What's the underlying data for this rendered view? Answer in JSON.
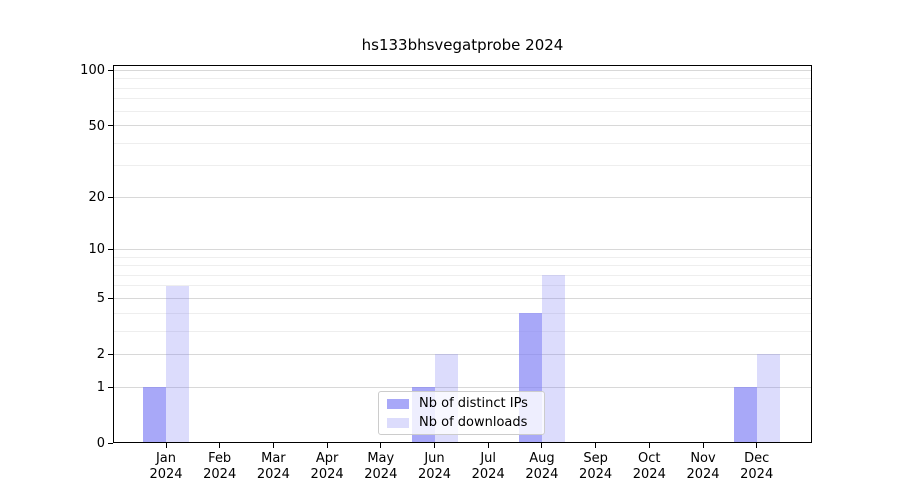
{
  "chart_data": {
    "type": "bar",
    "title": "hs133bhsvegatprobe 2024",
    "categories": [
      "Jan",
      "Feb",
      "Mar",
      "Apr",
      "May",
      "Jun",
      "Jul",
      "Aug",
      "Sep",
      "Oct",
      "Nov",
      "Dec"
    ],
    "year_label": "2024",
    "series": [
      {
        "name": "Nb of distinct IPs",
        "color": "rgba(127,127,245,0.68)",
        "values": [
          1,
          0,
          0,
          0,
          0,
          1,
          0,
          4,
          0,
          0,
          0,
          1
        ]
      },
      {
        "name": "Nb of downloads",
        "color": "rgba(127,127,245,0.27)",
        "values": [
          6,
          0,
          0,
          0,
          0,
          2,
          0,
          7,
          0,
          0,
          0,
          2
        ]
      }
    ],
    "y_scale": "log1p",
    "y_ticks": [
      0,
      1,
      2,
      5,
      10,
      20,
      50,
      100
    ],
    "y_minor_ticks": [
      3,
      4,
      6,
      7,
      8,
      9,
      30,
      40,
      60,
      70,
      80,
      90
    ],
    "ylim": [
      0,
      107
    ],
    "grid": true,
    "legend_position": "lower center",
    "colors": {
      "background": "#ffffff",
      "axis": "#000000",
      "text": "#000000",
      "major_grid": "#d8d8d8",
      "minor_grid": "#eeeeee",
      "legend_border": "#cccccc",
      "legend_background": "rgba(255,255,255,0.8)"
    }
  }
}
